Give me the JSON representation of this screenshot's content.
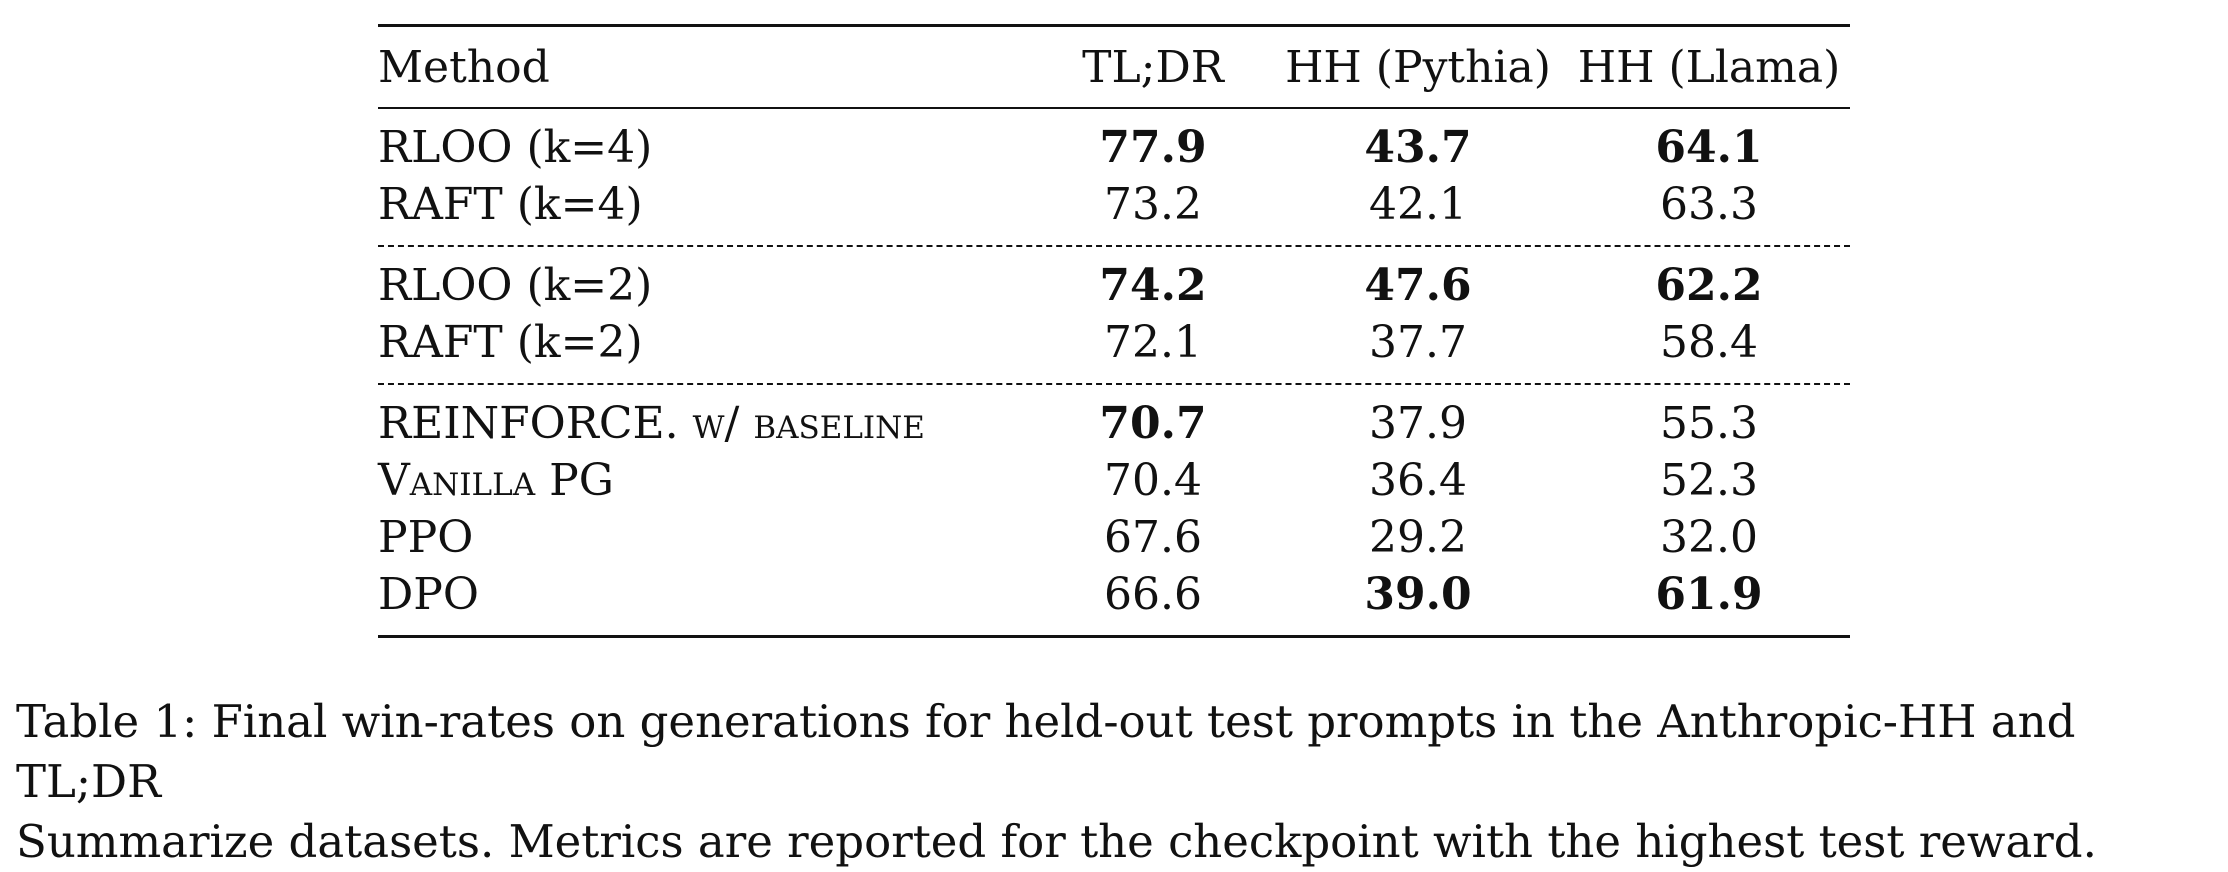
{
  "table": {
    "headers": [
      "Method",
      "TL;DR",
      "HH (Pythia)",
      "HH (Llama)"
    ],
    "groups": [
      {
        "rows": [
          {
            "method": "RLOO (k=4)",
            "values": [
              "77.9",
              "43.7",
              "64.1"
            ],
            "bold": [
              true,
              true,
              true
            ]
          },
          {
            "method": "RAFT (k=4)",
            "values": [
              "73.2",
              "42.1",
              "63.3"
            ],
            "bold": [
              false,
              false,
              false
            ]
          }
        ]
      },
      {
        "rows": [
          {
            "method": "RLOO (k=2)",
            "values": [
              "74.2",
              "47.6",
              "62.2"
            ],
            "bold": [
              true,
              true,
              true
            ]
          },
          {
            "method": "RAFT (k=2)",
            "values": [
              "72.1",
              "37.7",
              "58.4"
            ],
            "bold": [
              false,
              false,
              false
            ]
          }
        ]
      },
      {
        "rows": [
          {
            "method_main": "REINFORCE.",
            "method_sc": "w/ baseline",
            "values": [
              "70.7",
              "37.9",
              "55.3"
            ],
            "bold": [
              true,
              false,
              false
            ]
          },
          {
            "method_sc": "Vanilla",
            "method_tail": "PG",
            "values": [
              "70.4",
              "36.4",
              "52.3"
            ],
            "bold": [
              false,
              false,
              false
            ]
          },
          {
            "method": "PPO",
            "values": [
              "67.6",
              "29.2",
              "32.0"
            ],
            "bold": [
              false,
              false,
              false
            ]
          },
          {
            "method": "DPO",
            "values": [
              "66.6",
              "39.0",
              "61.9"
            ],
            "bold": [
              false,
              true,
              true
            ]
          }
        ]
      }
    ]
  },
  "caption": {
    "line1": "Table 1: Final win-rates on generations for held-out test prompts in the Anthropic-HH and TL;DR",
    "line2": "Summarize datasets. Metrics are reported for the checkpoint with the highest test reward."
  }
}
